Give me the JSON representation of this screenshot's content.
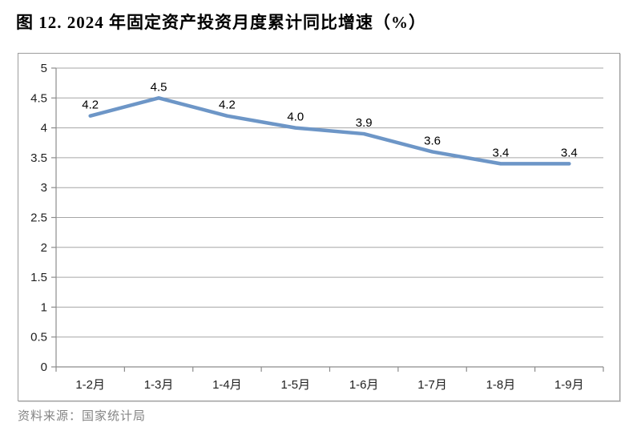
{
  "page": {
    "title": "图 12. 2024 年固定资产投资月度累计同比增速（%）",
    "source": "资料来源：国家统计局"
  },
  "chart_data": {
    "type": "line",
    "title": "图 12. 2024 年固定资产投资月度累计同比增速（%）",
    "categories": [
      "1-2月",
      "1-3月",
      "1-4月",
      "1-5月",
      "1-6月",
      "1-7月",
      "1-8月",
      "1-9月"
    ],
    "values": [
      4.2,
      4.5,
      4.2,
      4.0,
      3.9,
      3.6,
      3.4,
      3.4
    ],
    "point_labels": [
      "4.2",
      "4.5",
      "4.2",
      "4.0",
      "3.9",
      "3.6",
      "3.4",
      "3.4"
    ],
    "xlabel": "",
    "ylabel": "",
    "ylim": [
      0,
      5
    ],
    "y_ticks": [
      "5",
      "4.5",
      "4",
      "3.5",
      "3",
      "2.5",
      "2",
      "1.5",
      "1",
      "0.5",
      "0"
    ],
    "grid": true,
    "legend": "none",
    "line_color": "#6D96C7",
    "gridline_color": "#A6A6A6",
    "axis_color": "#8C8C8C",
    "tick_label_color": "#1f1f1f",
    "data_label_color": "#000000"
  }
}
